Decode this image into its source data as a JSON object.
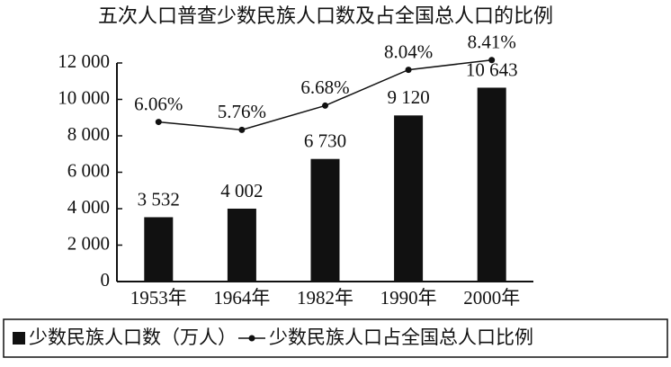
{
  "chart_data": {
    "type": "bar-line",
    "title": "五次人口普查少数民族人口数及占全国总人口的比例",
    "categories": [
      "1953年",
      "1964年",
      "1982年",
      "1990年",
      "2000年"
    ],
    "series": [
      {
        "name": "少数民族人口数（万人）",
        "type": "bar",
        "color": "#111111",
        "values": [
          3532,
          4002,
          6730,
          9120,
          10643
        ],
        "value_labels": [
          "3 532",
          "4 002",
          "6 730",
          "9 120",
          "10 643"
        ]
      },
      {
        "name": "少数民族人口占全国总人口比例",
        "type": "line",
        "axis": "y2",
        "color": "#111111",
        "values": [
          6.06,
          5.76,
          6.68,
          8.04,
          8.41
        ],
        "value_labels": [
          "6.06%",
          "5.76%",
          "6.68%",
          "8.04%",
          "8.41%"
        ]
      }
    ],
    "ylim": [
      0,
      12000
    ],
    "yticks": [
      0,
      {
        "value": 2000,
        "label": "2 000"
      },
      {
        "value": 4000,
        "label": "4 000"
      },
      {
        "value": 6000,
        "label": "6 000"
      },
      {
        "value": 8000,
        "label": "8 000"
      },
      {
        "value": 10000,
        "label": "10 000"
      },
      {
        "value": 12000,
        "label": "12 000"
      }
    ],
    "y2lim": [
      0,
      8.3
    ],
    "legend": "bottom",
    "grid": false
  }
}
